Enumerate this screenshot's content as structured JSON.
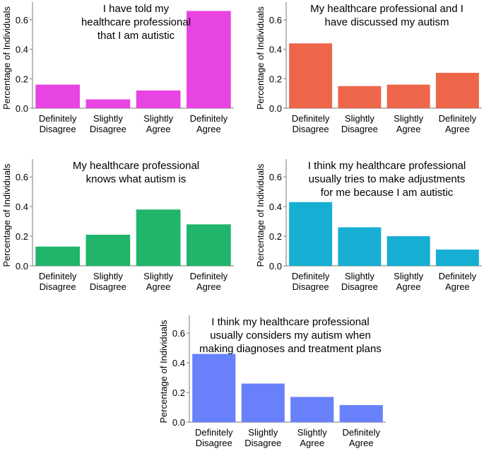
{
  "chart_data": [
    {
      "type": "bar",
      "title_lines": [
        "I have told my",
        "healthcare professional",
        "that I am autistic"
      ],
      "ylabel": "Percentage of Individuals",
      "ylim": [
        0,
        0.72
      ],
      "yticks": [
        "0.0",
        "0.2",
        "0.4",
        "0.6"
      ],
      "categories": [
        [
          "Definitely",
          "Disagree"
        ],
        [
          "Slightly",
          "Disagree"
        ],
        [
          "Slightly",
          "Agree"
        ],
        [
          "Definitely",
          "Agree"
        ]
      ],
      "values": [
        0.16,
        0.06,
        0.12,
        0.66
      ],
      "color": "#E844E3"
    },
    {
      "type": "bar",
      "title_lines": [
        "My healthcare professional and I",
        "have discussed my autism"
      ],
      "ylabel": "Percentage of Individuals",
      "ylim": [
        0,
        0.72
      ],
      "yticks": [
        "0.0",
        "0.2",
        "0.4",
        "0.6"
      ],
      "categories": [
        [
          "Definitely",
          "Disagree"
        ],
        [
          "Slightly",
          "Disagree"
        ],
        [
          "Slightly",
          "Agree"
        ],
        [
          "Definitely",
          "Agree"
        ]
      ],
      "values": [
        0.44,
        0.15,
        0.16,
        0.24
      ],
      "color": "#EE664A"
    },
    {
      "type": "bar",
      "title_lines": [
        "My healthcare professional",
        "knows what autism is"
      ],
      "ylabel": "Percentage of Individuals",
      "ylim": [
        0,
        0.72
      ],
      "yticks": [
        "0.0",
        "0.2",
        "0.4",
        "0.6"
      ],
      "categories": [
        [
          "Definitely",
          "Disagree"
        ],
        [
          "Slightly",
          "Disagree"
        ],
        [
          "Slightly",
          "Agree"
        ],
        [
          "Definitely",
          "Agree"
        ]
      ],
      "values": [
        0.13,
        0.21,
        0.38,
        0.28
      ],
      "color": "#20B56B"
    },
    {
      "type": "bar",
      "title_lines": [
        "I think my healthcare professional",
        "usually tries to make adjustments",
        "for me because I am autistic"
      ],
      "ylabel": "Percentage of Individuals",
      "ylim": [
        0,
        0.72
      ],
      "yticks": [
        "0.0",
        "0.2",
        "0.4",
        "0.6"
      ],
      "categories": [
        [
          "Definitely",
          "Disagree"
        ],
        [
          "Slightly",
          "Disagree"
        ],
        [
          "Slightly",
          "Agree"
        ],
        [
          "Definitely",
          "Agree"
        ]
      ],
      "values": [
        0.43,
        0.26,
        0.2,
        0.11
      ],
      "color": "#17AED3"
    },
    {
      "type": "bar",
      "title_lines": [
        "I think my healthcare professional",
        "usually considers my autism when",
        "making diagnoses and treatment plans"
      ],
      "ylabel": "Percentage of Individuals",
      "ylim": [
        0,
        0.72
      ],
      "yticks": [
        "0.0",
        "0.2",
        "0.4",
        "0.6"
      ],
      "categories": [
        [
          "Definitely",
          "Disagree"
        ],
        [
          "Slightly",
          "Disagree"
        ],
        [
          "Slightly",
          "Agree"
        ],
        [
          "Definitely",
          "Agree"
        ]
      ],
      "values": [
        0.46,
        0.26,
        0.17,
        0.115
      ],
      "color": "#6881FB"
    }
  ]
}
